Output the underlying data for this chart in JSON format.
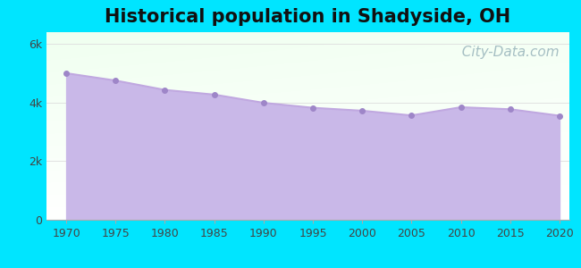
{
  "title": "Historical population in Shadyside, OH",
  "title_fontsize": 15,
  "title_fontweight": "bold",
  "years": [
    1970,
    1975,
    1980,
    1985,
    1990,
    1995,
    2000,
    2005,
    2010,
    2015,
    2020
  ],
  "population": [
    5000,
    4750,
    4430,
    4270,
    3990,
    3820,
    3720,
    3560,
    3840,
    3770,
    3550
  ],
  "ylim": [
    0,
    6400
  ],
  "yticks": [
    0,
    2000,
    4000,
    6000
  ],
  "ytick_labels": [
    "0",
    "2k",
    "4k",
    "6k"
  ],
  "xticks": [
    1970,
    1975,
    1980,
    1985,
    1990,
    1995,
    2000,
    2005,
    2010,
    2015,
    2020
  ],
  "line_color": "#c0a8e0",
  "fill_color": "#c9b8e8",
  "fill_alpha": 1.0,
  "marker_color": "#9e86c8",
  "bg_outer": "#00e5ff",
  "bg_plot_topleft": "#e8f5e9",
  "bg_plot_bottomright": "#ffffff",
  "watermark": "  City-Data.com",
  "watermark_color": "#9db8be",
  "watermark_fontsize": 11
}
